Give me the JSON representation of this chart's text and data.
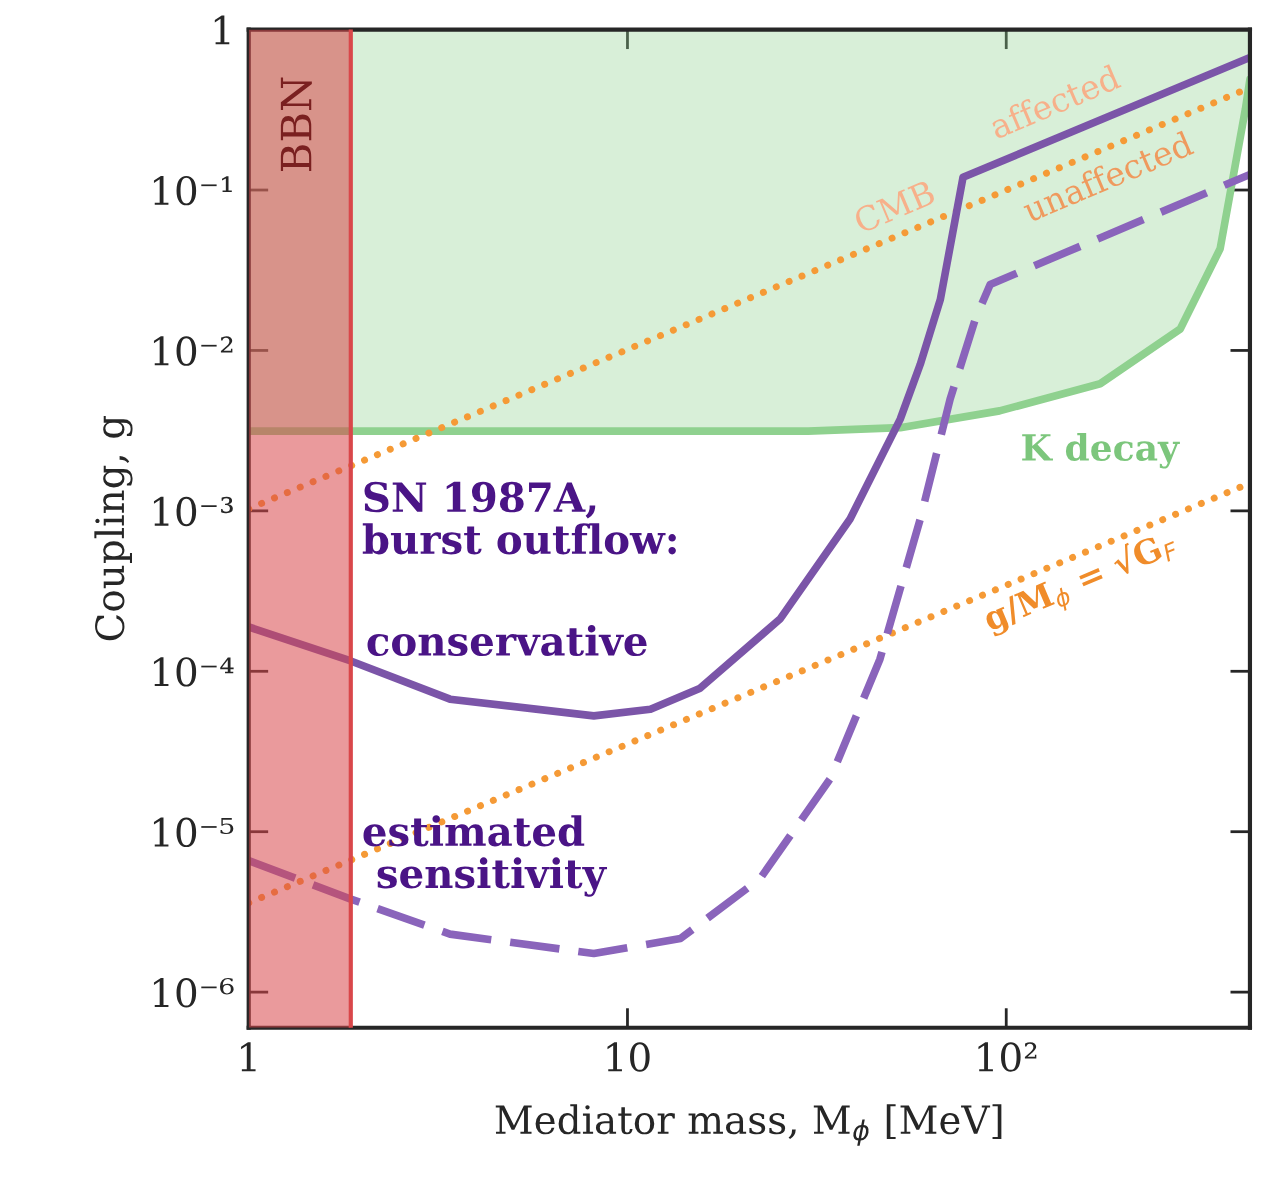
{
  "chart_data": {
    "type": "line",
    "xlabel": "Mediator mass, M$_{ϕ}$ [MeV]",
    "ylabel": "Coupling, g",
    "log": "xy",
    "xlim": [
      1,
      440
    ],
    "ylim": [
      6e-07,
      1
    ],
    "xticks": [
      1,
      10,
      {
        "value": 100,
        "label": "10²"
      }
    ],
    "yticks": [
      {
        "value": 1e-06,
        "label": "10⁻⁶"
      },
      {
        "value": 1e-05,
        "label": "10⁻⁵"
      },
      {
        "value": 0.0001,
        "label": "10⁻⁴"
      },
      {
        "value": 0.001,
        "label": "10⁻³"
      },
      {
        "value": 0.01,
        "label": "10⁻²"
      },
      {
        "value": 0.1,
        "label": "10⁻¹"
      },
      1
    ],
    "grid": false,
    "bands": [
      {
        "axis": "x",
        "from": 1,
        "to": 1.86,
        "label": "BBN",
        "color": "#d9474a"
      }
    ],
    "ref_lines": [
      {
        "axis": "x",
        "value": 1.86,
        "color": "#d9474a"
      }
    ],
    "series": [
      {
        "color": "#8fd18f",
        "x": [
          1,
          30,
          52.5,
          96,
          177,
          288,
          367,
          428,
          440
        ],
        "values": [
          0.00314,
          0.00314,
          0.0033,
          0.0042,
          0.0062,
          0.0136,
          0.043,
          0.32,
          0.49
        ],
        "lower": [
          0.00314,
          0.00314,
          0.0033,
          0.0042,
          0.0062,
          0.0136,
          0.043,
          0.32,
          0.49
        ],
        "upper": [
          1,
          1,
          1,
          1,
          1,
          1,
          1,
          1,
          1
        ]
      },
      {
        "color": "#f59a36",
        "line_style": "dotted",
        "x": [
          1,
          440
        ],
        "values": [
          0.00103,
          0.435
        ]
      },
      {
        "color": "#f59a36",
        "line_style": "dotted",
        "x": [
          1,
          440
        ],
        "values": [
          3.6e-06,
          0.00149
        ]
      },
      {
        "color": "#7b55a8",
        "x": [
          1,
          1.86,
          3.4,
          8.15,
          11.5,
          15.5,
          25.3,
          38.7,
          52.5,
          59.3,
          67,
          76.9,
          440
        ],
        "values": [
          0.000189,
          0.000116,
          6.7e-05,
          5.27e-05,
          5.8e-05,
          7.8e-05,
          0.000212,
          0.00089,
          0.00373,
          0.0082,
          0.0208,
          0.12,
          0.67
        ]
      },
      {
        "color": "#8a64bb",
        "line_style": "dashed",
        "x": [
          1,
          1.86,
          3.4,
          8.15,
          13.8,
          22.4,
          34.3,
          46.4,
          59.3,
          71.1,
          82.8,
          90.7,
          440
        ],
        "values": [
          6.6e-06,
          3.8e-06,
          2.3e-06,
          1.74e-06,
          2.16e-06,
          5.1e-06,
          2.14e-05,
          0.000119,
          0.00089,
          0.00497,
          0.0156,
          0.0258,
          0.125
        ]
      }
    ],
    "annotations": [
      "CMB",
      "affected",
      "unaffected",
      "K decay",
      "SN 1987A,\nburst outflow:",
      "conservative",
      "estimated\n sensitivity",
      "g/M$_{ϕ}$ = √G$_{F}$"
    ]
  }
}
